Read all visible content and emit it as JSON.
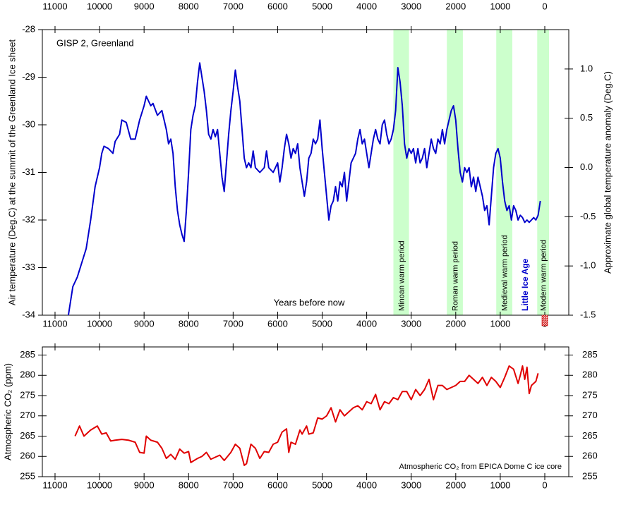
{
  "chart_data": [
    {
      "type": "line",
      "annotation": "GISP 2, Greenland",
      "x_label": "Years before now",
      "y_label": "Air temperature (Deg.C) at the summit of the Greenland Ice sheet",
      "y2_label": "Approximate global temperature anomaly (Deg.C)",
      "xlim": [
        11285,
        -539
      ],
      "xticks": [
        11000,
        10000,
        9000,
        8000,
        7000,
        6000,
        5000,
        4000,
        3000,
        2000,
        1000,
        0
      ],
      "xtick_sides": [
        "top",
        "bottom"
      ],
      "ylim": [
        -34,
        -28
      ],
      "yticks": [
        -28,
        -29,
        -30,
        -31,
        -32,
        -33,
        -34
      ],
      "y2lim": [
        -1.5,
        1.4
      ],
      "y2ticks": [
        {
          "value": 1.0,
          "label": "1.0"
        },
        0.5,
        {
          "value": 0,
          "label": "0.0"
        },
        -0.5,
        {
          "value": -1.0,
          "label": "-1.0"
        },
        -1.5
      ],
      "period_color": "#ccffcc",
      "periods": [
        {
          "label": "Minoan warm period",
          "range": [
            3400,
            3050
          ]
        },
        {
          "label": "Roman warm period",
          "range": [
            2200,
            1840
          ]
        },
        {
          "label": "Medieval warm period",
          "range": [
            1090,
            730
          ]
        },
        {
          "label": "Modern warm period",
          "range": [
            170,
            -95
          ]
        }
      ],
      "annotations": [
        {
          "text": "Little Ice Age",
          "x": 430,
          "color": "#0000cc"
        }
      ],
      "x": [
        10700,
        10600,
        10500,
        10400,
        10300,
        10200,
        10100,
        10000,
        9950,
        9900,
        9800,
        9700,
        9650,
        9550,
        9500,
        9400,
        9300,
        9200,
        9100,
        9000,
        8950,
        8850,
        8800,
        8700,
        8600,
        8500,
        8450,
        8400,
        8350,
        8300,
        8250,
        8200,
        8150,
        8100,
        8050,
        8000,
        7950,
        7900,
        7850,
        7800,
        7750,
        7700,
        7650,
        7600,
        7550,
        7500,
        7450,
        7400,
        7350,
        7300,
        7250,
        7200,
        7150,
        7100,
        7050,
        7000,
        6950,
        6900,
        6850,
        6800,
        6750,
        6700,
        6650,
        6600,
        6550,
        6500,
        6400,
        6300,
        6250,
        6200,
        6100,
        6000,
        5950,
        5900,
        5850,
        5800,
        5750,
        5700,
        5650,
        5600,
        5550,
        5500,
        5450,
        5400,
        5350,
        5300,
        5250,
        5200,
        5150,
        5100,
        5050,
        5000,
        4950,
        4900,
        4850,
        4800,
        4750,
        4700,
        4650,
        4600,
        4550,
        4500,
        4450,
        4400,
        4350,
        4300,
        4250,
        4200,
        4150,
        4100,
        4050,
        4000,
        3950,
        3900,
        3850,
        3800,
        3750,
        3700,
        3650,
        3600,
        3550,
        3500,
        3450,
        3400,
        3350,
        3300,
        3250,
        3200,
        3150,
        3100,
        3050,
        3000,
        2950,
        2900,
        2850,
        2800,
        2750,
        2700,
        2650,
        2600,
        2550,
        2500,
        2450,
        2400,
        2350,
        2300,
        2250,
        2200,
        2150,
        2100,
        2050,
        2000,
        1950,
        1900,
        1850,
        1800,
        1750,
        1700,
        1650,
        1600,
        1550,
        1500,
        1450,
        1400,
        1350,
        1300,
        1250,
        1200,
        1150,
        1100,
        1050,
        1000,
        950,
        900,
        850,
        800,
        750,
        700,
        650,
        600,
        550,
        500,
        450,
        400,
        350,
        300,
        250,
        200,
        150,
        100
      ],
      "series": [
        {
          "color": "#0000cc",
          "values": [
            -34.0,
            -33.4,
            -33.2,
            -32.9,
            -32.6,
            -32.0,
            -31.3,
            -30.9,
            -30.6,
            -30.45,
            -30.5,
            -30.6,
            -30.35,
            -30.2,
            -29.9,
            -29.95,
            -30.3,
            -30.3,
            -29.9,
            -29.6,
            -29.4,
            -29.6,
            -29.55,
            -29.8,
            -29.7,
            -30.1,
            -30.4,
            -30.3,
            -30.6,
            -31.3,
            -31.8,
            -32.1,
            -32.3,
            -32.45,
            -31.8,
            -31.0,
            -30.1,
            -29.8,
            -29.6,
            -29.1,
            -28.7,
            -29.0,
            -29.3,
            -29.7,
            -30.2,
            -30.3,
            -30.1,
            -30.25,
            -30.1,
            -30.6,
            -31.1,
            -31.4,
            -30.8,
            -30.2,
            -29.7,
            -29.3,
            -28.85,
            -29.2,
            -29.5,
            -30.1,
            -30.7,
            -30.9,
            -30.8,
            -30.9,
            -30.55,
            -30.9,
            -31.0,
            -30.9,
            -30.55,
            -30.9,
            -31.0,
            -30.8,
            -31.2,
            -30.9,
            -30.5,
            -30.2,
            -30.4,
            -30.7,
            -30.5,
            -30.6,
            -30.4,
            -30.9,
            -31.2,
            -31.5,
            -31.2,
            -30.7,
            -30.6,
            -30.3,
            -30.4,
            -30.3,
            -29.9,
            -30.5,
            -31.0,
            -31.5,
            -32.0,
            -31.7,
            -31.6,
            -31.3,
            -31.6,
            -31.2,
            -31.3,
            -31.0,
            -31.6,
            -31.2,
            -30.8,
            -30.7,
            -30.6,
            -30.3,
            -30.1,
            -30.4,
            -30.3,
            -30.6,
            -30.9,
            -30.6,
            -30.3,
            -30.1,
            -30.3,
            -30.4,
            -30.0,
            -29.9,
            -30.2,
            -30.4,
            -30.3,
            -30.1,
            -29.7,
            -28.8,
            -29.1,
            -29.6,
            -30.4,
            -30.7,
            -30.5,
            -30.6,
            -30.5,
            -30.8,
            -30.5,
            -30.8,
            -30.7,
            -30.5,
            -30.9,
            -30.6,
            -30.3,
            -30.5,
            -30.6,
            -30.3,
            -30.4,
            -30.1,
            -30.4,
            -30.1,
            -29.9,
            -29.7,
            -29.6,
            -29.9,
            -30.5,
            -31.0,
            -31.2,
            -30.9,
            -31.0,
            -30.9,
            -31.3,
            -31.1,
            -31.4,
            -31.1,
            -31.3,
            -31.5,
            -31.8,
            -31.7,
            -32.1,
            -31.5,
            -30.9,
            -30.6,
            -30.5,
            -30.7,
            -31.2,
            -31.6,
            -31.8,
            -31.7,
            -32.0,
            -31.7,
            -31.8,
            -32.0,
            -31.9,
            -31.95,
            -32.05,
            -32.0,
            -32.05,
            -32.0,
            -31.95,
            -32.0,
            -31.9,
            -31.6
          ]
        }
      ]
    },
    {
      "type": "line",
      "annotation": "Atmospheric CO₂ from EPICA Dome C ice core",
      "y_label": "Atmospheric CO₂ (ppm)",
      "xlim": [
        11285,
        -539
      ],
      "xticks": [
        11000,
        10000,
        9000,
        8000,
        7000,
        6000,
        5000,
        4000,
        3000,
        2000,
        1000,
        0
      ],
      "xtick_sides": [
        "bottom"
      ],
      "ylim": [
        255,
        287
      ],
      "yticks": [
        255,
        260,
        265,
        270,
        275,
        280,
        285
      ],
      "y2lim": [
        255,
        287
      ],
      "y2ticks": [
        255,
        260,
        265,
        270,
        275,
        280,
        285
      ],
      "x": [
        10550,
        10450,
        10350,
        10200,
        10050,
        9950,
        9850,
        9750,
        9650,
        9500,
        9350,
        9200,
        9100,
        9000,
        8950,
        8850,
        8700,
        8600,
        8500,
        8400,
        8300,
        8200,
        8100,
        8000,
        7950,
        7800,
        7700,
        7600,
        7500,
        7400,
        7300,
        7200,
        7050,
        6950,
        6850,
        6750,
        6700,
        6600,
        6500,
        6400,
        6300,
        6200,
        6100,
        6000,
        5900,
        5800,
        5750,
        5700,
        5600,
        5500,
        5450,
        5350,
        5300,
        5200,
        5100,
        5000,
        4900,
        4800,
        4700,
        4600,
        4500,
        4400,
        4300,
        4200,
        4100,
        4000,
        3900,
        3800,
        3700,
        3600,
        3500,
        3400,
        3300,
        3200,
        3100,
        3000,
        2900,
        2800,
        2700,
        2600,
        2500,
        2400,
        2300,
        2200,
        2100,
        2000,
        1900,
        1800,
        1700,
        1600,
        1500,
        1400,
        1300,
        1200,
        1100,
        1000,
        900,
        800,
        700,
        600,
        550,
        500,
        450,
        400,
        350,
        300,
        200,
        150
      ],
      "series": [
        {
          "color": "#e00000",
          "values": [
            265,
            267.5,
            265,
            266.5,
            267.5,
            265.5,
            265.8,
            263.8,
            264,
            264.2,
            264,
            263.5,
            261,
            260.8,
            265,
            264,
            263.5,
            262,
            259.5,
            260.5,
            259.3,
            261.8,
            260.8,
            261.2,
            258.5,
            259.5,
            260,
            261,
            259.3,
            259.8,
            260.3,
            259,
            261,
            263,
            262,
            257.8,
            258.2,
            263,
            262,
            259.5,
            261.2,
            261,
            263,
            263.5,
            266,
            266.8,
            261,
            263.5,
            263,
            266.5,
            265.5,
            267.5,
            265.5,
            265.8,
            269.5,
            269.2,
            270,
            272,
            268.5,
            271.5,
            270,
            271,
            272,
            272.5,
            271.5,
            273.5,
            273,
            275.3,
            271.5,
            273.5,
            273,
            274.5,
            274,
            276,
            276,
            274,
            276.5,
            275,
            276.5,
            279,
            274,
            277.5,
            277.5,
            276.5,
            277,
            277.5,
            278.5,
            278.5,
            280,
            279,
            278,
            279.5,
            277.5,
            279.5,
            278.5,
            277,
            279.5,
            282.3,
            281.5,
            278,
            280,
            282.3,
            279,
            282,
            275.5,
            277.5,
            278.5,
            280.5
          ]
        }
      ]
    }
  ]
}
